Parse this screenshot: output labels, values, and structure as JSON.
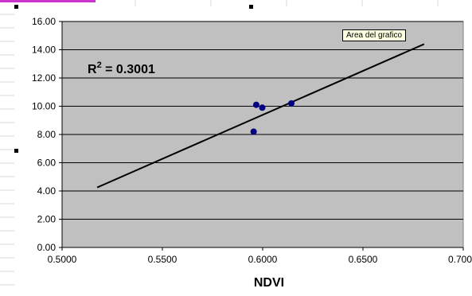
{
  "tooltip": "Area del grafico",
  "r2_label": {
    "prefix": "R",
    "sup": "2",
    "value": " = 0.3001"
  },
  "colors": {
    "plot_bg": "#c0c0c0",
    "point": "#000080",
    "trendline": "#000000",
    "gridline": "#000000",
    "sheet_grid": "#d8d8d8",
    "selection_tab": "#cc33cc"
  },
  "chart_data": {
    "type": "scatter",
    "xlabel": "NDVI",
    "ylabel": "",
    "xlim": [
      0.5,
      0.7
    ],
    "ylim": [
      0,
      16
    ],
    "x_ticks": [
      "0.5000",
      "0.5500",
      "0.6000",
      "0.6500",
      "0.700"
    ],
    "x_tick_values": [
      0.5,
      0.55,
      0.6,
      0.65,
      0.7
    ],
    "y_ticks": [
      "0.00",
      "2.00",
      "4.00",
      "6.00",
      "8.00",
      "10.00",
      "12.00",
      "14.00",
      "16.00"
    ],
    "y_tick_values": [
      0,
      2,
      4,
      6,
      8,
      10,
      12,
      14,
      16
    ],
    "grid": "horizontal",
    "series": [
      {
        "points": [
          {
            "x": 0.5968,
            "y": 10.1
          },
          {
            "x": 0.5998,
            "y": 9.9
          },
          {
            "x": 0.6143,
            "y": 10.2
          },
          {
            "x": 0.5955,
            "y": 8.2
          }
        ]
      }
    ],
    "trendline": {
      "type": "linear",
      "start": {
        "x": 0.5175,
        "y": 4.25
      },
      "end": {
        "x": 0.6805,
        "y": 14.4
      }
    },
    "annotation": "R² = 0.3001"
  }
}
